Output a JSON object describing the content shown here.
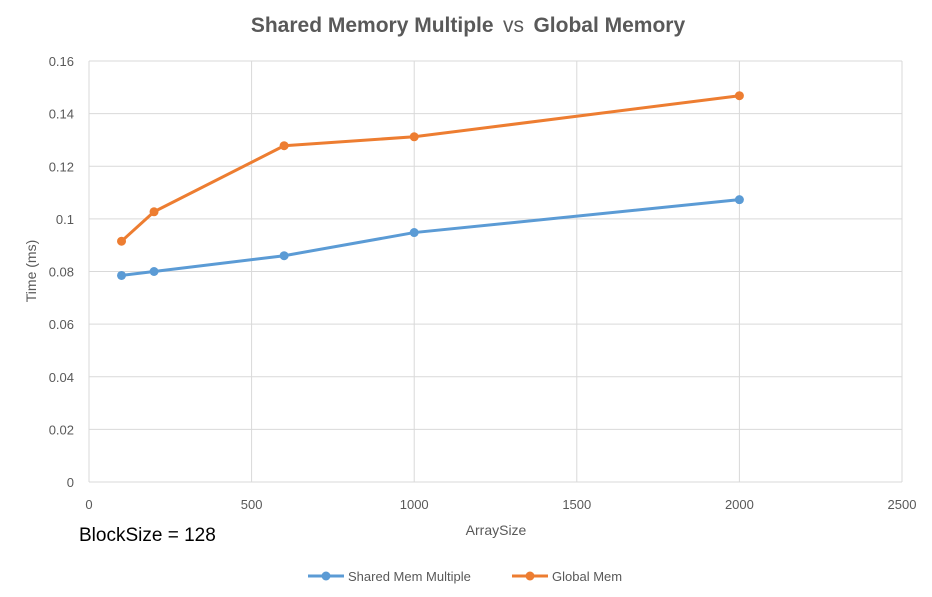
{
  "chart_data": {
    "type": "line",
    "title_parts": [
      "Shared Memory Multiple",
      "vs",
      "Global Memory"
    ],
    "xlabel": "ArraySize",
    "ylabel": "Time (ms)",
    "xlim": [
      0,
      2500
    ],
    "ylim": [
      0,
      0.16
    ],
    "x_ticks": [
      "0",
      "500",
      "1000",
      "1500",
      "2000",
      "2500"
    ],
    "y_ticks": [
      "0",
      "0.02",
      "0.04",
      "0.06",
      "0.08",
      "0.1",
      "0.12",
      "0.14",
      "0.16"
    ],
    "grid": true,
    "legend_position": "bottom",
    "annotation": "BlockSize = 128",
    "series": [
      {
        "name": "Shared Mem Multiple",
        "color": "#5B9BD5",
        "x": [
          100,
          200,
          600,
          1000,
          2000
        ],
        "values": [
          0.0785,
          0.08,
          0.086,
          0.0948,
          0.1073
        ]
      },
      {
        "name": "Global Mem",
        "color": "#ED7D31",
        "x": [
          100,
          200,
          600,
          1000,
          2000
        ],
        "values": [
          0.0915,
          0.1027,
          0.1278,
          0.1312,
          0.1468
        ]
      }
    ]
  }
}
